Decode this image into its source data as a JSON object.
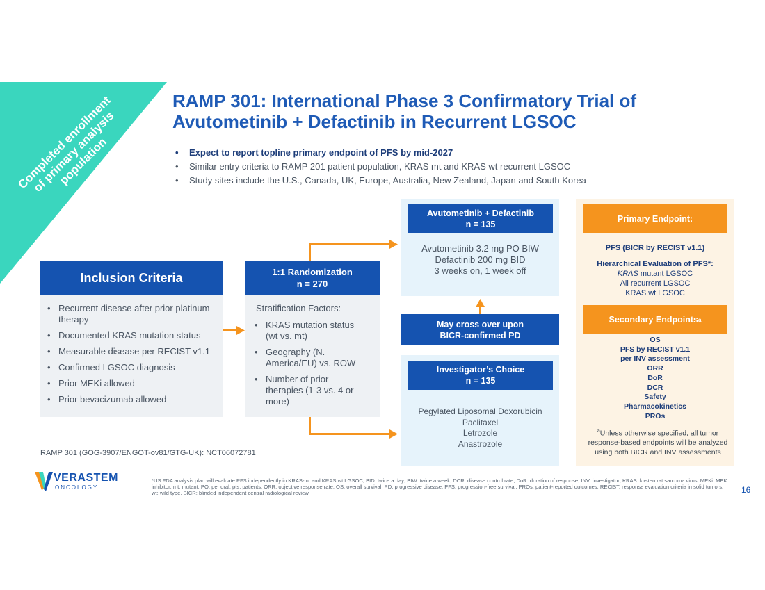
{
  "ribbon": {
    "lines": [
      "Completed enrollment",
      "of primary analysis",
      "population"
    ],
    "color": "#3ad6be"
  },
  "title": {
    "line1": "RAMP 301: International Phase 3 Confirmatory Trial of",
    "line2": "Avutometinib + Defactinib in Recurrent LGSOC"
  },
  "bullets": [
    "Expect to report topline primary endpoint of PFS by mid-2027",
    "Similar entry criteria to RAMP 201 patient population, KRAS mt and KRAS wt recurrent LGSOC",
    "Study sites include the U.S., Canada, UK, Europe, Australia, New Zealand, Japan and South Korea"
  ],
  "inclusion": {
    "heading": "Inclusion Criteria",
    "items": [
      "Recurrent disease after prior platinum therapy",
      "Documented KRAS mutation status",
      "Measurable disease per RECIST v1.1",
      "Confirmed LGSOC diagnosis",
      "Prior MEKi allowed",
      "Prior bevacizumab allowed"
    ]
  },
  "randomization": {
    "heading": "1:1 Randomization",
    "n": "n = 270",
    "strat_label": "Stratification Factors:",
    "items": [
      "KRAS mutation status (wt vs. mt)",
      "Geography (N. America/EU) vs. ROW",
      "Number of prior therapies (1-3 vs. 4 or more)"
    ]
  },
  "arm_a": {
    "heading": "Avutometinib + Defactinib",
    "n": "n = 135",
    "lines": [
      "Avutometinib 3.2 mg PO BIW",
      "Defactinib 200 mg BID",
      "3 weeks on, 1 week off"
    ]
  },
  "crossover": {
    "line1": "May cross over upon",
    "line2": "BICR-confirmed PD"
  },
  "arm_b": {
    "heading": "Investigator’s Choice",
    "n": "n = 135",
    "lines": [
      "Pegylated Liposomal Doxorubicin",
      "Paclitaxel",
      "Letrozole",
      "Anastrozole"
    ]
  },
  "primary": {
    "heading": "Primary Endpoint:",
    "line1": "PFS (BICR by RECIST v1.1)",
    "line2": "Hierarchical Evaluation of PFS*:",
    "line3_italic": "KRAS",
    "line3_rest": " mutant LGSOC",
    "line4": "All recurrent LGSOC",
    "line5": "KRAS wt LGSOC"
  },
  "secondary": {
    "heading": "Secondary Endpoints",
    "heading_sup": "a",
    "items": [
      "OS",
      "PFS by RECIST v1.1",
      "per INV assessment",
      "ORR",
      "DoR",
      "DCR",
      "Safety",
      "Pharmacokinetics",
      "PROs"
    ],
    "note_sup": "a",
    "note": "Unless otherwise specified, all tumor response-based endpoints will be analyzed using both BICR and INV assessments"
  },
  "trial_id": "RAMP 301 (GOG-3907/ENGOT-ov81/GTG-UK): NCT06072781",
  "logo": {
    "name": "VERASTEM",
    "sub": "ONCOLOGY"
  },
  "footnote": "*US FDA analysis plan will evaluate PFS independently in KRAS-mt and KRAS wt LGSOC; BID: twice a day; BIW: twice a week; DCR: disease control rate; DoR: duration of response; INV: investigator; KRAS: kirsten rat sarcoma virus; MEKi: MEK inhibitor; mt: mutant; PO: per oral; pts, patients; ORR: objective response rate; OS: overall survival; PD: progressive disease; PFS: progression-free survival; PROs: patient-reported outcomes; RECIST: response evaluation criteria in solid tumors; wt: wild type. BICR: blinded independent central radiological review",
  "page_number": "16",
  "colors": {
    "navy": "#1553b0",
    "orange": "#f5941e",
    "teal": "#3ad6be",
    "title_blue": "#1f5bb6"
  }
}
